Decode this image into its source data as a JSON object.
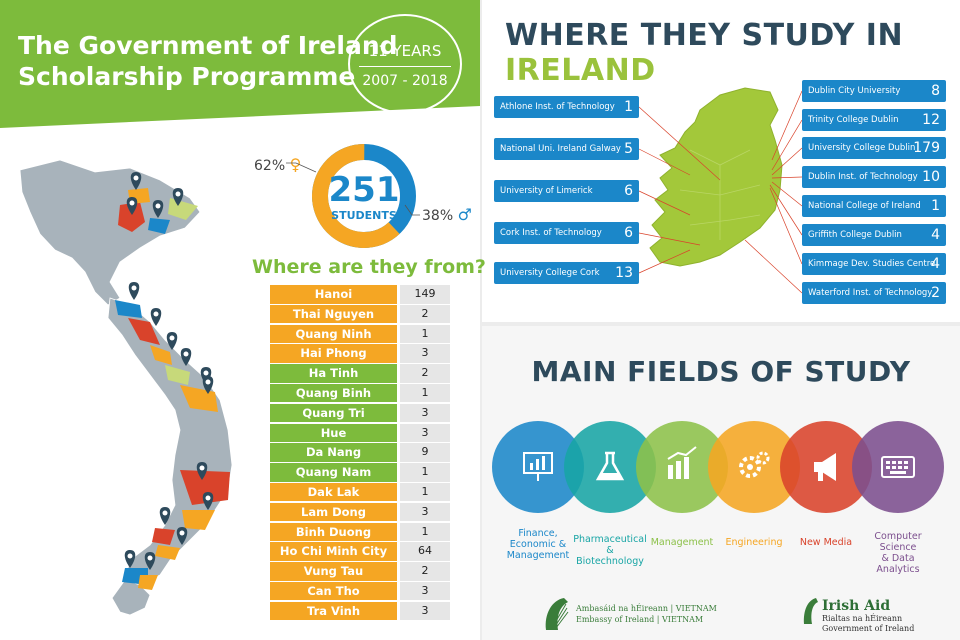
{
  "banner": {
    "title_line1": "The Government of Ireland",
    "title_line2": "Scholarship Programme",
    "years": "11 YEARS",
    "period": "2007 - 2018",
    "color": "#7dbb3c"
  },
  "students": {
    "total": "251",
    "label": "STUDENTS",
    "female_pct": "62%",
    "male_pct": "38%",
    "female_fraction": 0.62,
    "male_fraction": 0.38,
    "female_color": "#f5a623",
    "male_color": "#1b87c9"
  },
  "from": {
    "title": "Where are they from?",
    "rows": [
      {
        "name": "Hanoi",
        "count": "149",
        "color": "#f5a623"
      },
      {
        "name": "Thai Nguyen",
        "count": "2",
        "color": "#f5a623"
      },
      {
        "name": "Quang Ninh",
        "count": "1",
        "color": "#f5a623"
      },
      {
        "name": "Hai Phong",
        "count": "3",
        "color": "#f5a623"
      },
      {
        "name": "Ha Tinh",
        "count": "2",
        "color": "#7dbb3c"
      },
      {
        "name": "Quang Binh",
        "count": "1",
        "color": "#7dbb3c"
      },
      {
        "name": "Quang Tri",
        "count": "3",
        "color": "#7dbb3c"
      },
      {
        "name": "Hue",
        "count": "3",
        "color": "#7dbb3c"
      },
      {
        "name": "Da Nang",
        "count": "9",
        "color": "#7dbb3c"
      },
      {
        "name": "Quang Nam",
        "count": "1",
        "color": "#7dbb3c"
      },
      {
        "name": "Dak Lak",
        "count": "1",
        "color": "#f5a623"
      },
      {
        "name": "Lam Dong",
        "count": "3",
        "color": "#f5a623"
      },
      {
        "name": "Binh Duong",
        "count": "1",
        "color": "#f5a623"
      },
      {
        "name": "Ho Chi Minh City",
        "count": "64",
        "color": "#f5a623"
      },
      {
        "name": "Vung Tau",
        "count": "2",
        "color": "#f5a623"
      },
      {
        "name": "Can Tho",
        "count": "3",
        "color": "#f5a623"
      },
      {
        "name": "Tra Vinh",
        "count": "3",
        "color": "#f5a623"
      }
    ]
  },
  "study": {
    "title_main": "WHERE THEY STUDY IN",
    "title_accent": "IRELAND",
    "left_unis": [
      {
        "name": "Athlone Inst. of Technology",
        "count": "1"
      },
      {
        "name": "National Uni. Ireland Galway",
        "count": "5"
      },
      {
        "name": "University of Limerick",
        "count": "6"
      },
      {
        "name": "Cork Inst. of Technology",
        "count": "6"
      },
      {
        "name": "University College Cork",
        "count": "13"
      }
    ],
    "right_unis": [
      {
        "name": "Dublin City University",
        "count": "8"
      },
      {
        "name": "Trinity College Dublin",
        "count": "12"
      },
      {
        "name": "University College Dublin",
        "count": "179"
      },
      {
        "name": "Dublin Inst. of Technology",
        "count": "10"
      },
      {
        "name": "National College of Ireland",
        "count": "1"
      },
      {
        "name": "Griffith College Dublin",
        "count": "4"
      },
      {
        "name": "Kimmage Dev. Studies Centre",
        "count": "4"
      },
      {
        "name": "Waterford Inst. of Technology",
        "count": "2"
      }
    ]
  },
  "fields": {
    "title": "MAIN FIELDS OF STUDY",
    "items": [
      {
        "label_lines": [
          "Finance,",
          "Economic &",
          "Management"
        ],
        "color": "#1b87c9",
        "icon": "chart-board-icon"
      },
      {
        "label_lines": [
          "Pharmaceutical",
          "& Biotechnology"
        ],
        "color": "#18a5a5",
        "icon": "flask-icon"
      },
      {
        "label_lines": [
          "Management"
        ],
        "color": "#8dc14a",
        "icon": "growth-chart-icon"
      },
      {
        "label_lines": [
          "Engineering"
        ],
        "color": "#f5a623",
        "icon": "gears-icon"
      },
      {
        "label_lines": [
          "New Media"
        ],
        "color": "#d9432b",
        "icon": "megaphone-icon"
      },
      {
        "label_lines": [
          "Computer Science",
          "& Data Analytics"
        ],
        "color": "#7c4f8e",
        "icon": "keyboard-icon"
      }
    ]
  },
  "footer": {
    "embassy_line1": "Ambasáid na hÉireann | VIETNAM",
    "embassy_line2": "Embassy of Ireland | VIETNAM",
    "aid_title": "Irish Aid",
    "aid_line1": "Rialtas na hÉireann",
    "aid_line2": "Government of Ireland"
  }
}
